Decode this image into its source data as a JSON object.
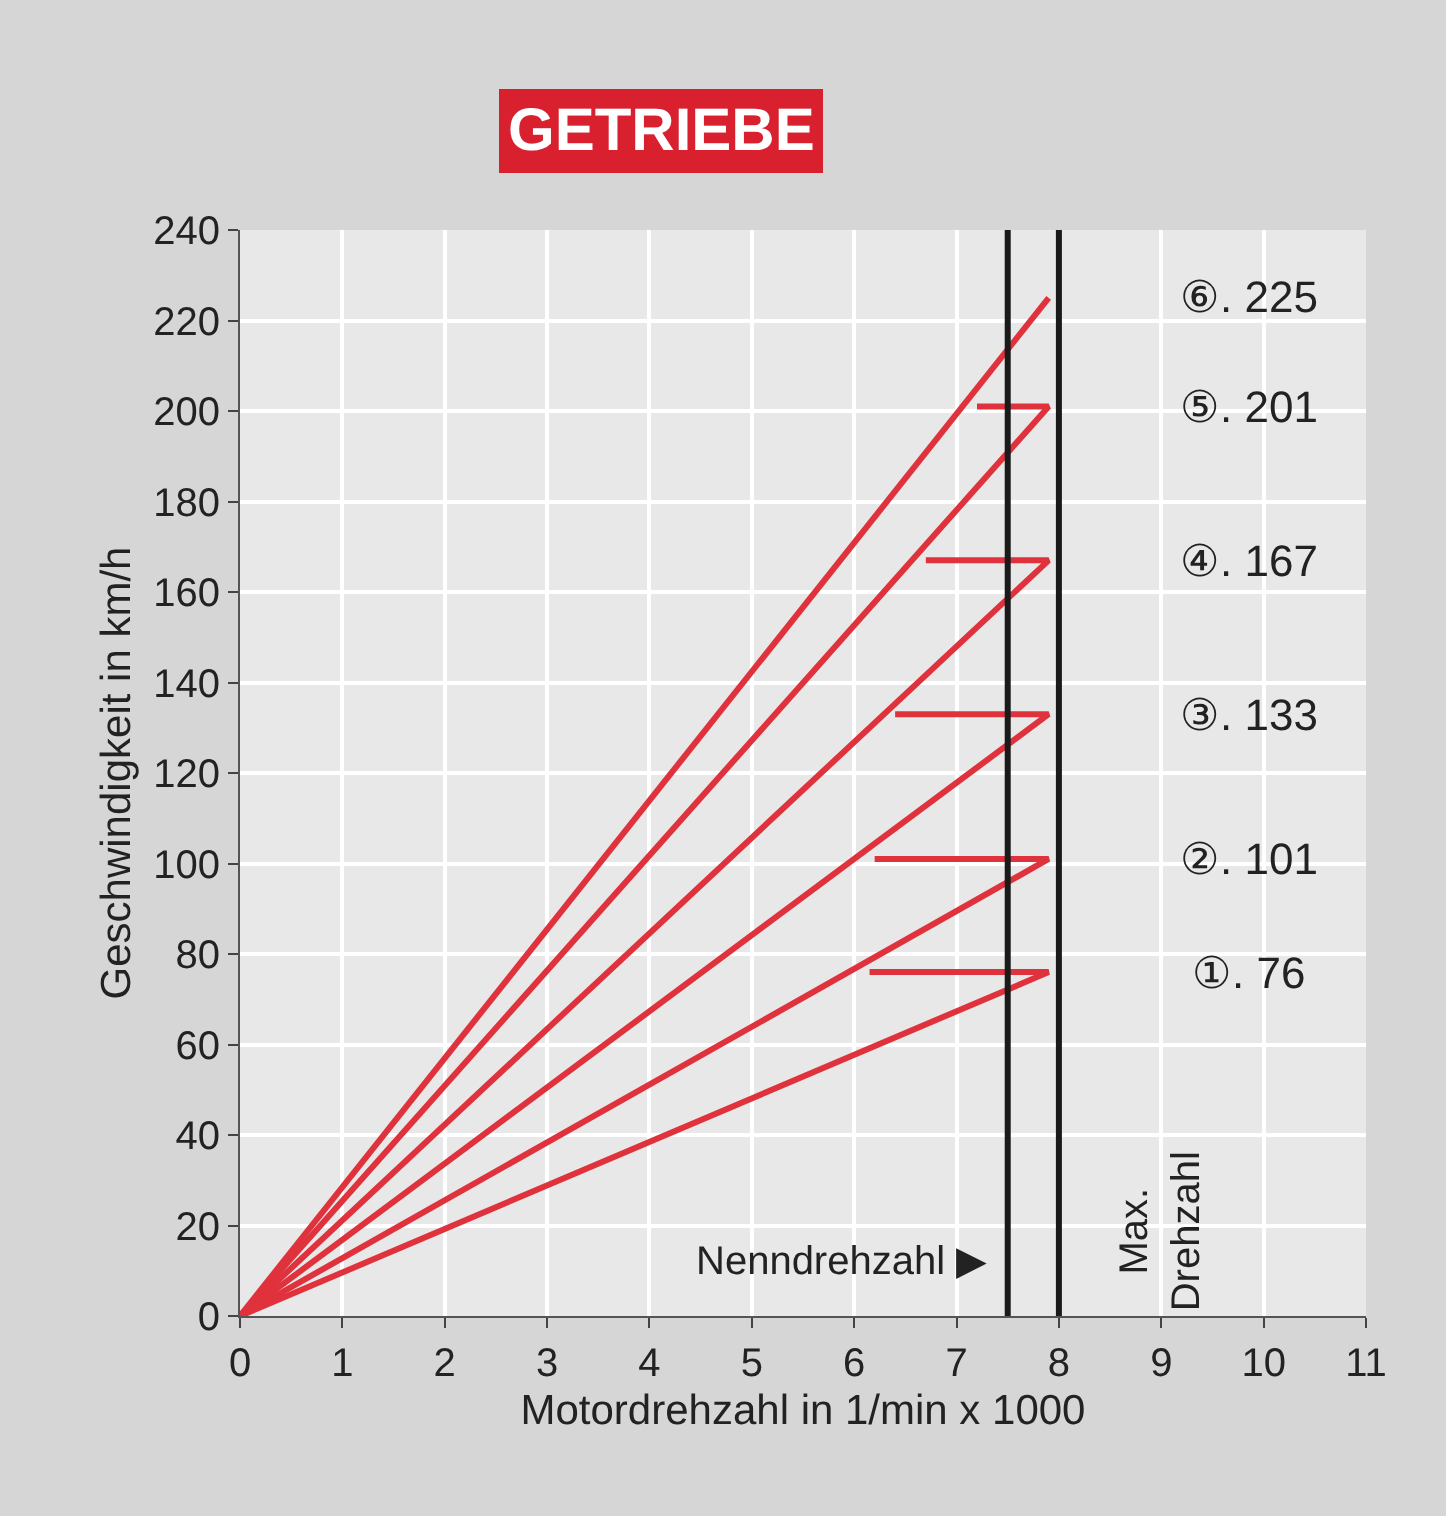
{
  "chart_data": {
    "type": "line",
    "title": "GETRIEBE",
    "xlabel": "Motordrehzahl in 1/min x 1000",
    "ylabel": "Geschwindigkeit in km/h",
    "xlim": [
      0,
      11
    ],
    "xticks": [
      0,
      1,
      2,
      3,
      4,
      5,
      6,
      7,
      8,
      9,
      10,
      11
    ],
    "ylim": [
      0,
      240
    ],
    "yticks": [
      0,
      20,
      40,
      60,
      80,
      100,
      120,
      140,
      160,
      180,
      200,
      220,
      240
    ],
    "grid": true,
    "marker": "none",
    "line_style": "solid",
    "series": [
      {
        "color": "#e0323c",
        "x": [
          0,
          7.9,
          6.15
        ],
        "values": [
          0,
          76,
          76
        ]
      },
      {
        "color": "#e0323c",
        "x": [
          0,
          7.9,
          6.2
        ],
        "values": [
          0,
          101,
          101
        ]
      },
      {
        "color": "#e0323c",
        "x": [
          0,
          7.9,
          6.4
        ],
        "values": [
          0,
          133,
          133
        ]
      },
      {
        "color": "#e0323c",
        "x": [
          0,
          7.9,
          6.7
        ],
        "values": [
          0,
          167,
          167
        ]
      },
      {
        "color": "#e0323c",
        "x": [
          0,
          7.9,
          7.2
        ],
        "values": [
          0,
          201,
          201
        ]
      },
      {
        "color": "#e0323c",
        "x": [
          0,
          7.9
        ],
        "values": [
          0,
          225
        ]
      }
    ],
    "ref_lines": [
      {
        "axis": "x",
        "value": 7.5,
        "label": "Nenndrehzahl ▶",
        "color": "#1a1a1a",
        "line_style": "solid"
      },
      {
        "axis": "x",
        "value": 8,
        "label": "Max. Drehzahl",
        "color": "#1a1a1a",
        "line_style": "solid"
      }
    ],
    "annotations": [
      "⑥. 225",
      "⑤. 201",
      "④. 167",
      "③. 133",
      "②. 101",
      "①. 76"
    ]
  }
}
